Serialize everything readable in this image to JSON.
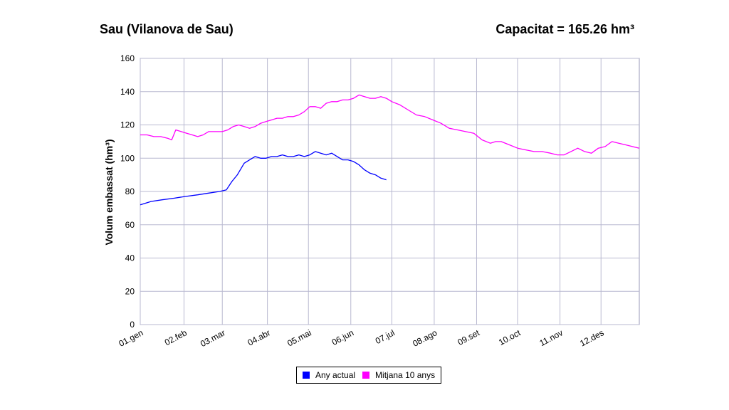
{
  "header": {
    "title": "Sau (Vilanova de Sau)",
    "capacity": "Capacitat = 165.26 hm³"
  },
  "chart_data": {
    "type": "line",
    "ylabel": "Volum embassat (hm³)",
    "ylim": [
      0,
      160
    ],
    "yticks": [
      "0",
      "20",
      "40",
      "60",
      "80",
      "100",
      "120",
      "140",
      "160"
    ],
    "xlim": [
      0,
      365
    ],
    "xticks": [
      {
        "label": "01.gen",
        "day": 0
      },
      {
        "label": "02.feb",
        "day": 32
      },
      {
        "label": "03.mar",
        "day": 60
      },
      {
        "label": "04.abr",
        "day": 93
      },
      {
        "label": "05.mai",
        "day": 123
      },
      {
        "label": "06.jun",
        "day": 154
      },
      {
        "label": "07.jul",
        "day": 184
      },
      {
        "label": "08.ago",
        "day": 215
      },
      {
        "label": "09.set",
        "day": 246
      },
      {
        "label": "10.oct",
        "day": 276
      },
      {
        "label": "11.nov",
        "day": 307
      },
      {
        "label": "12.des",
        "day": 337
      }
    ],
    "grid": true,
    "legend_position": "bottom-center",
    "series": [
      {
        "name": "Any actual",
        "color": "#0000ff",
        "x": [
          0,
          8,
          16,
          25,
          33,
          42,
          50,
          58,
          63,
          67,
          71,
          76,
          80,
          84,
          88,
          92,
          96,
          100,
          104,
          108,
          112,
          116,
          120,
          124,
          128,
          132,
          136,
          140,
          144,
          148,
          152,
          156,
          160,
          164,
          168,
          172,
          176,
          180
        ],
        "y": [
          72,
          74,
          75,
          76,
          77,
          78,
          79,
          80,
          81,
          86,
          90,
          97,
          99,
          101,
          100,
          100,
          101,
          101,
          102,
          101,
          101,
          102,
          101,
          102,
          104,
          103,
          102,
          103,
          101,
          99,
          99,
          98,
          96,
          93,
          91,
          90,
          88,
          87
        ]
      },
      {
        "name": "Mitjana 10 anys",
        "color": "#ff00ff",
        "x": [
          0,
          5,
          10,
          15,
          20,
          23,
          26,
          30,
          34,
          38,
          42,
          46,
          50,
          55,
          60,
          64,
          68,
          72,
          76,
          80,
          84,
          88,
          92,
          96,
          100,
          104,
          108,
          112,
          116,
          120,
          124,
          128,
          132,
          136,
          140,
          144,
          148,
          152,
          156,
          160,
          164,
          168,
          172,
          176,
          180,
          184,
          190,
          196,
          202,
          208,
          214,
          220,
          226,
          232,
          238,
          244,
          250,
          256,
          260,
          264,
          270,
          276,
          282,
          288,
          294,
          300,
          305,
          310,
          315,
          320,
          325,
          330,
          335,
          340,
          345,
          350,
          355,
          360,
          365
        ],
        "y": [
          114,
          114,
          113,
          113,
          112,
          111,
          117,
          116,
          115,
          114,
          113,
          114,
          116,
          116,
          116,
          117,
          119,
          120,
          119,
          118,
          119,
          121,
          122,
          123,
          124,
          124,
          125,
          125,
          126,
          128,
          131,
          131,
          130,
          133,
          134,
          134,
          135,
          135,
          136,
          138,
          137,
          136,
          136,
          137,
          136,
          134,
          132,
          129,
          126,
          125,
          123,
          121,
          118,
          117,
          116,
          115,
          111,
          109,
          110,
          110,
          108,
          106,
          105,
          104,
          104,
          103,
          102,
          102,
          104,
          106,
          104,
          103,
          106,
          107,
          110,
          109,
          108,
          107,
          106
        ]
      }
    ]
  }
}
